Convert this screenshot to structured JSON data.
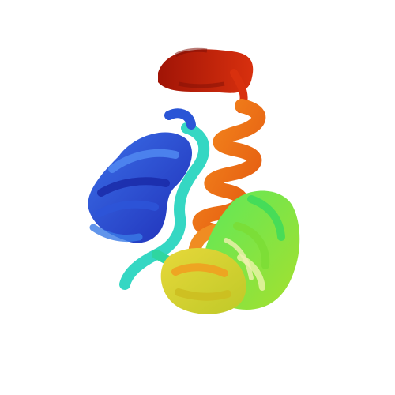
{
  "scene": {
    "background": "#ffffff",
    "subject": "protein-cartoon-rainbow",
    "palette": {
      "n_terminus": "#2f3fd6",
      "blue": "#2a5fe0",
      "cyan": "#2fd6b8",
      "green": "#3ee07a",
      "lime": "#8fe03a",
      "yellow": "#d8d02a",
      "orange": "#f07a1a",
      "red_orange": "#e84a12",
      "c_terminus": "#b81a0a"
    }
  }
}
